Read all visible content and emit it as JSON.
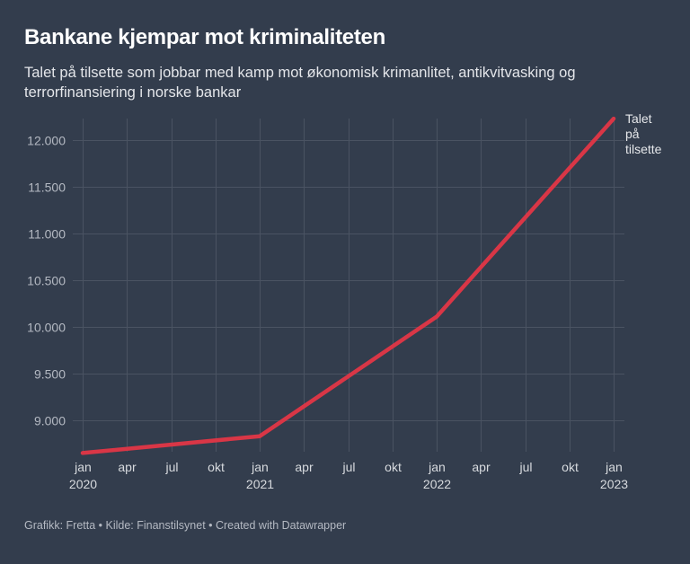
{
  "header": {
    "title": "Bankane kjempar mot kriminaliteten",
    "subtitle": "Talet på tilsette som jobbar med kamp mot økonomisk krimanlitet, antikvitvasking og terrorfinansiering i norske bankar"
  },
  "footer": {
    "text": "Grafikk: Fretta • Kilde: Finanstilsynet • Created with Datawrapper"
  },
  "colors": {
    "background": "#333d4d",
    "line": "#d93646",
    "grid": "#4a5362"
  },
  "chart_data": {
    "type": "line",
    "title": "Bankane kjempar mot kriminaliteten",
    "subtitle": "Talet på tilsette som jobbar med kamp mot økonomisk krimanlitet, antikvitvasking og terrorfinansiering i norske bankar",
    "xlabel": "",
    "ylabel": "",
    "grid": true,
    "legend": "direct-label-right",
    "ylim": [
      8600,
      12250
    ],
    "yticks": [
      9000,
      9500,
      10000,
      10500,
      11000,
      11500,
      12000
    ],
    "ytick_labels": [
      "9.000",
      "9.500",
      "10.000",
      "10.500",
      "11.000",
      "11.500",
      "12.000"
    ],
    "xlim": [
      2020.0,
      2023.0
    ],
    "xticks": [
      {
        "x": 2020.0,
        "label": "jan",
        "year": "2020"
      },
      {
        "x": 2020.25,
        "label": "apr",
        "year": ""
      },
      {
        "x": 2020.5,
        "label": "jul",
        "year": ""
      },
      {
        "x": 2020.75,
        "label": "okt",
        "year": ""
      },
      {
        "x": 2021.0,
        "label": "jan",
        "year": "2021"
      },
      {
        "x": 2021.25,
        "label": "apr",
        "year": ""
      },
      {
        "x": 2021.5,
        "label": "jul",
        "year": ""
      },
      {
        "x": 2021.75,
        "label": "okt",
        "year": ""
      },
      {
        "x": 2022.0,
        "label": "jan",
        "year": "2022"
      },
      {
        "x": 2022.25,
        "label": "apr",
        "year": ""
      },
      {
        "x": 2022.5,
        "label": "jul",
        "year": ""
      },
      {
        "x": 2022.75,
        "label": "okt",
        "year": ""
      },
      {
        "x": 2023.0,
        "label": "jan",
        "year": "2023"
      }
    ],
    "series": [
      {
        "name": "Talet på tilsette",
        "label_lines": [
          "Talet",
          "på",
          "tilsette"
        ],
        "x": [
          2020.0,
          2021.0,
          2022.0,
          2023.0
        ],
        "values": [
          8650,
          8830,
          10110,
          12230
        ]
      }
    ]
  }
}
